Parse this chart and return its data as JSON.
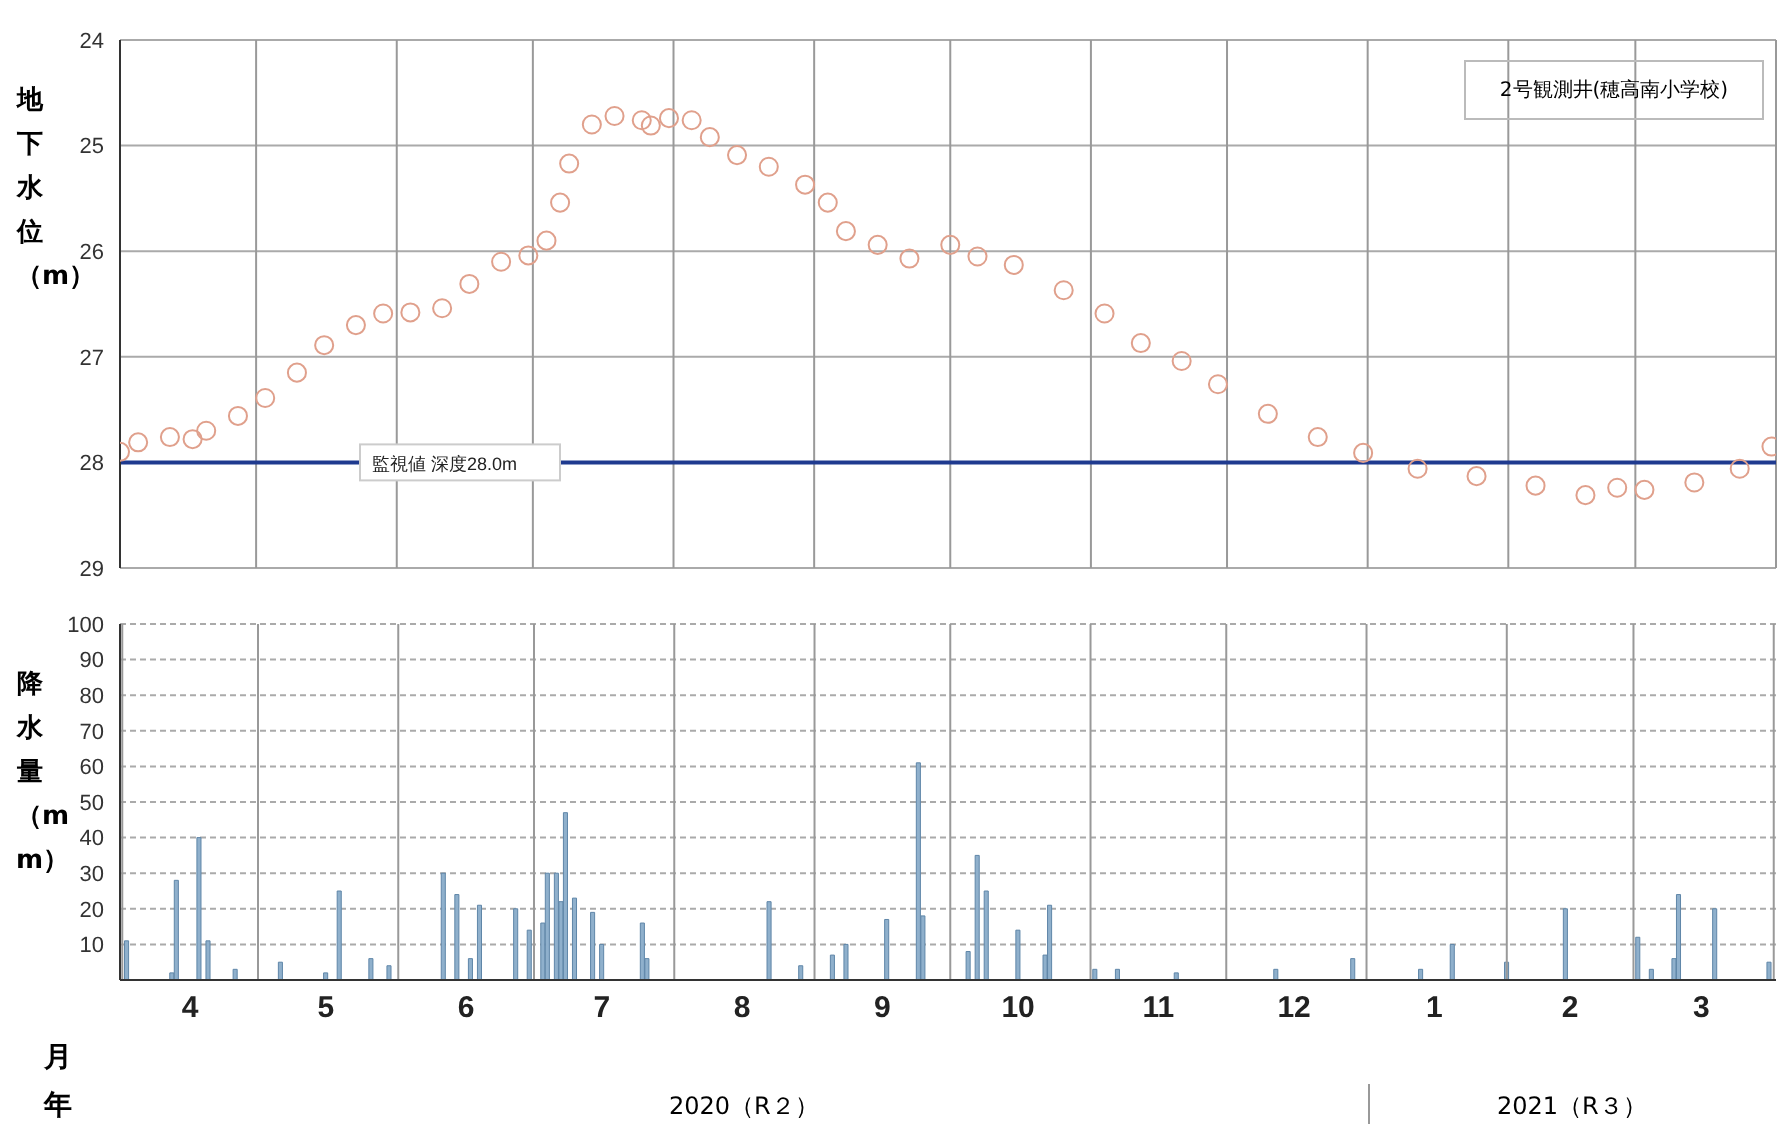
{
  "chart_data": [
    {
      "type": "scatter",
      "title": "2号観測井(穂高南小学校)",
      "ylabel": "地下水位（m）",
      "marker": "circle",
      "grid": true,
      "tick_labels": "y",
      "xlim": [
        "2020-04-01",
        "2021-04-01"
      ],
      "xticks": [
        {
          "value": "2020-04-01",
          "label": null
        },
        {
          "value": "2020-05-01",
          "label": null
        },
        {
          "value": "2020-06-01",
          "label": null
        },
        {
          "value": "2020-07-01",
          "label": null
        },
        {
          "value": "2020-08-01",
          "label": null
        },
        {
          "value": "2020-09-01",
          "label": null
        },
        {
          "value": "2020-10-01",
          "label": null
        },
        {
          "value": "2020-11-01",
          "label": null
        },
        {
          "value": "2020-12-01",
          "label": null
        },
        {
          "value": "2021-01-01",
          "label": null
        },
        {
          "value": "2021-02-01",
          "label": null
        },
        {
          "value": "2021-03-01",
          "label": null
        },
        {
          "value": "2021-04-01",
          "label": null
        }
      ],
      "ylim": [
        29,
        24
      ],
      "yticks": [
        24,
        25,
        26,
        27,
        28,
        29
      ],
      "ref_lines": [
        {
          "axis": "y",
          "value": 28,
          "label": "監視値 深度28.0m",
          "color": "#1f3a8f"
        }
      ],
      "series": [
        {
          "color": "#e0a08c",
          "x": [
            "2020-04-01",
            "2020-04-05",
            "2020-04-12",
            "2020-04-17",
            "2020-04-20",
            "2020-04-27",
            "2020-05-03",
            "2020-05-10",
            "2020-05-16",
            "2020-05-23",
            "2020-05-29",
            "2020-06-04",
            "2020-06-11",
            "2020-06-17",
            "2020-06-24",
            "2020-06-30",
            "2020-07-04",
            "2020-07-07",
            "2020-07-09",
            "2020-07-14",
            "2020-07-19",
            "2020-07-25",
            "2020-07-27",
            "2020-07-31",
            "2020-08-05",
            "2020-08-09",
            "2020-08-15",
            "2020-08-22",
            "2020-08-30",
            "2020-09-04",
            "2020-09-08",
            "2020-09-15",
            "2020-09-22",
            "2020-10-01",
            "2020-10-07",
            "2020-10-15",
            "2020-10-26",
            "2020-11-04",
            "2020-11-12",
            "2020-11-21",
            "2020-11-29",
            "2020-12-10",
            "2020-12-21",
            "2020-12-31",
            "2021-01-12",
            "2021-01-25",
            "2021-02-07",
            "2021-02-18",
            "2021-02-25",
            "2021-03-03",
            "2021-03-14",
            "2021-03-24",
            "2021-03-31"
          ],
          "values": [
            27.9,
            27.81,
            27.76,
            27.78,
            27.7,
            27.56,
            27.39,
            27.15,
            26.89,
            26.7,
            26.59,
            26.58,
            26.54,
            26.31,
            26.1,
            26.04,
            25.9,
            25.54,
            25.17,
            24.8,
            24.72,
            24.76,
            24.81,
            24.74,
            24.76,
            24.92,
            25.09,
            25.2,
            25.37,
            25.54,
            25.81,
            25.94,
            26.07,
            25.94,
            26.05,
            26.13,
            26.37,
            26.59,
            26.87,
            27.04,
            27.26,
            27.54,
            27.76,
            27.91,
            28.06,
            28.13,
            28.22,
            28.31,
            28.24,
            28.26,
            28.19,
            28.06,
            27.85
          ]
        }
      ]
    },
    {
      "type": "bar",
      "ylabel": "降水量（mm）",
      "xlabel": "月",
      "grid": true,
      "annotations": [
        "年",
        "2020（R２）",
        "2021（R３）"
      ],
      "xlim": [
        "2020-04-01",
        "2021-04-01"
      ],
      "xticks": [
        {
          "value": "2020-04-01",
          "label": null
        },
        {
          "value": "2020-04-16",
          "label": "4"
        },
        {
          "value": "2020-05-01",
          "label": null
        },
        {
          "value": "2020-05-16",
          "label": "5"
        },
        {
          "value": "2020-06-01",
          "label": null
        },
        {
          "value": "2020-06-16",
          "label": "6"
        },
        {
          "value": "2020-07-01",
          "label": null
        },
        {
          "value": "2020-07-16",
          "label": "7"
        },
        {
          "value": "2020-08-01",
          "label": null
        },
        {
          "value": "2020-08-16",
          "label": "8"
        },
        {
          "value": "2020-09-01",
          "label": null
        },
        {
          "value": "2020-09-16",
          "label": "9"
        },
        {
          "value": "2020-10-01",
          "label": null
        },
        {
          "value": "2020-10-16",
          "label": "10"
        },
        {
          "value": "2020-11-01",
          "label": null
        },
        {
          "value": "2020-11-16",
          "label": "11"
        },
        {
          "value": "2020-12-01",
          "label": null
        },
        {
          "value": "2020-12-16",
          "label": "12"
        },
        {
          "value": "2021-01-01",
          "label": null
        },
        {
          "value": "2021-01-16",
          "label": "1"
        },
        {
          "value": "2021-02-01",
          "label": null
        },
        {
          "value": "2021-02-15",
          "label": "2"
        },
        {
          "value": "2021-03-01",
          "label": null
        },
        {
          "value": "2021-03-16",
          "label": "3"
        },
        {
          "value": "2021-04-01",
          "label": null
        }
      ],
      "ylim": [
        0,
        100
      ],
      "yticks": [
        10,
        20,
        30,
        40,
        50,
        60,
        70,
        80,
        90,
        100
      ],
      "series": [
        {
          "color": "#8fb0cc",
          "x": [
            "2020-04-02",
            "2020-04-12",
            "2020-04-13",
            "2020-04-18",
            "2020-04-20",
            "2020-04-26",
            "2020-05-06",
            "2020-05-16",
            "2020-05-19",
            "2020-05-26",
            "2020-05-30",
            "2020-06-11",
            "2020-06-14",
            "2020-06-17",
            "2020-06-19",
            "2020-06-27",
            "2020-06-30",
            "2020-07-03",
            "2020-07-04",
            "2020-07-06",
            "2020-07-07",
            "2020-07-08",
            "2020-07-10",
            "2020-07-14",
            "2020-07-16",
            "2020-07-25",
            "2020-07-26",
            "2020-08-22",
            "2020-08-29",
            "2020-09-05",
            "2020-09-08",
            "2020-09-17",
            "2020-09-24",
            "2020-09-25",
            "2020-10-05",
            "2020-10-07",
            "2020-10-09",
            "2020-10-16",
            "2020-10-22",
            "2020-10-23",
            "2020-11-02",
            "2020-11-07",
            "2020-11-20",
            "2020-12-12",
            "2020-12-29",
            "2021-01-13",
            "2021-01-20",
            "2021-02-01",
            "2021-02-14",
            "2021-03-02",
            "2021-03-05",
            "2021-03-10",
            "2021-03-11",
            "2021-03-19",
            "2021-03-31"
          ],
          "values": [
            11,
            2,
            28,
            40,
            11,
            3,
            5,
            2,
            25,
            6,
            4,
            30,
            24,
            6,
            21,
            20,
            14,
            16,
            30,
            30,
            22,
            47,
            23,
            19,
            10,
            16,
            6,
            22,
            4,
            7,
            10,
            17,
            61,
            18,
            8,
            35,
            25,
            14,
            7,
            21,
            3,
            3,
            2,
            3,
            6,
            3,
            10,
            5,
            20,
            12,
            3,
            6,
            24,
            20,
            5
          ]
        }
      ]
    }
  ]
}
